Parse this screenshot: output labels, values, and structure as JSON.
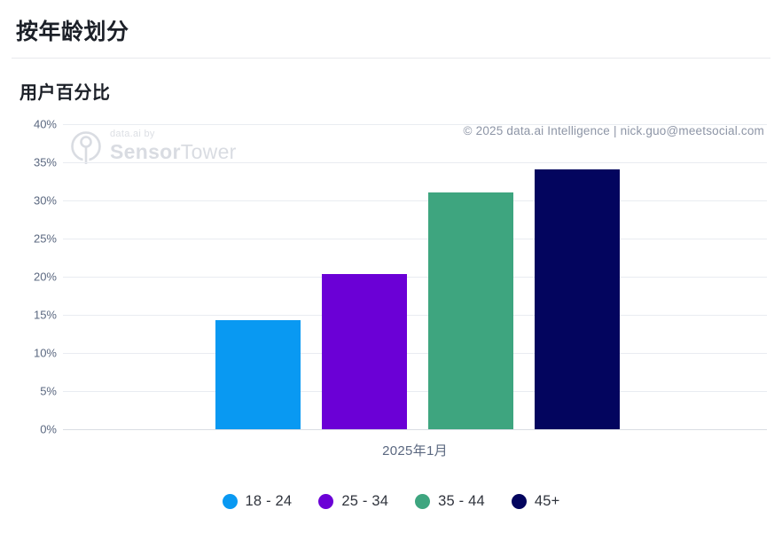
{
  "header": {
    "title": "按年龄划分"
  },
  "chart": {
    "subtitle": "用户百分比",
    "watermark": {
      "pre": "data.ai by",
      "brand_bold": "Sensor",
      "brand_light": "Tower",
      "logo_icon": "sensor-tower-antenna-icon"
    },
    "copyright": "© 2025 data.ai Intelligence | nick.guo@meetsocial.com",
    "x_label": "2025年1月"
  },
  "chart_data": {
    "type": "bar",
    "title": "按年龄划分",
    "ylabel": "用户百分比",
    "xlabel": "",
    "x_categories": [
      "2025年1月"
    ],
    "series": [
      {
        "name": "18 - 24",
        "color": "#0999f2",
        "values": [
          14.3
        ]
      },
      {
        "name": "25 - 34",
        "color": "#6b00d6",
        "values": [
          20.4
        ]
      },
      {
        "name": "35 - 44",
        "color": "#3ea57f",
        "values": [
          31.1
        ]
      },
      {
        "name": "45+",
        "color": "#03055e",
        "values": [
          34.1
        ]
      }
    ],
    "ylim": [
      0,
      40
    ],
    "ytick_step": 5,
    "ytick_suffix": "%",
    "grid": true,
    "legend_position": "bottom"
  }
}
